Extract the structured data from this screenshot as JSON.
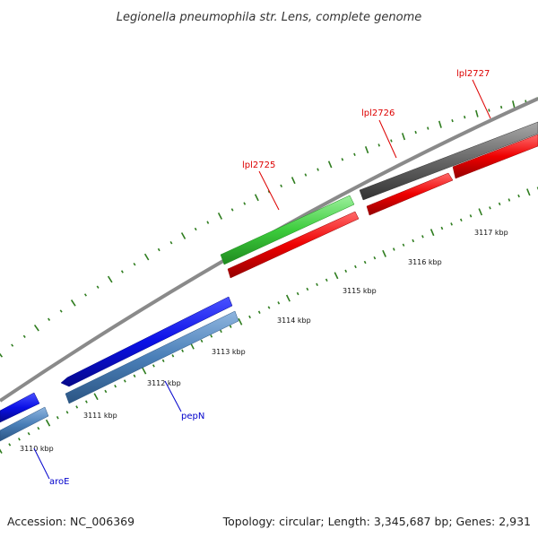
{
  "header": {
    "title": "Legionella pneumophila str. Lens, complete genome"
  },
  "footer": {
    "accession": "Accession: NC_006369",
    "summary": "Topology: circular; Length: 3,345,687 bp; Genes: 2,931"
  },
  "colors": {
    "backbone": "#8a8a8a",
    "tick": "#2f7d1f",
    "forward_blue": "#0a10e6",
    "reverse_blue": "#4a7fb8",
    "red": "#ee0000",
    "green": "#3ccc3c",
    "gray_gene": "#666666",
    "label_red": "#dd0000",
    "label_blue": "#0000cc"
  },
  "scale": {
    "kbp_labels": [
      "3110 kbp",
      "3111 kbp",
      "3112 kbp",
      "3113 kbp",
      "3114 kbp",
      "3115 kbp",
      "3116 kbp",
      "3117 kbp"
    ]
  },
  "genes": [
    {
      "name": "aroE",
      "strand": "forward",
      "color": "forward_blue"
    },
    {
      "name": "pepN",
      "strand": "forward",
      "color": "forward_blue"
    },
    {
      "name": "lpl2725",
      "strand": "forward",
      "color": "green"
    },
    {
      "name": "lpl2726",
      "strand": "reverse",
      "color": "red"
    },
    {
      "name": "lpl2727",
      "strand": "forward",
      "color": "gray_gene"
    }
  ],
  "labels": {
    "aroE": "aroE",
    "pepN": "pepN",
    "lpl2725": "lpl2725",
    "lpl2726": "lpl2726",
    "lpl2727": "lpl2727"
  }
}
